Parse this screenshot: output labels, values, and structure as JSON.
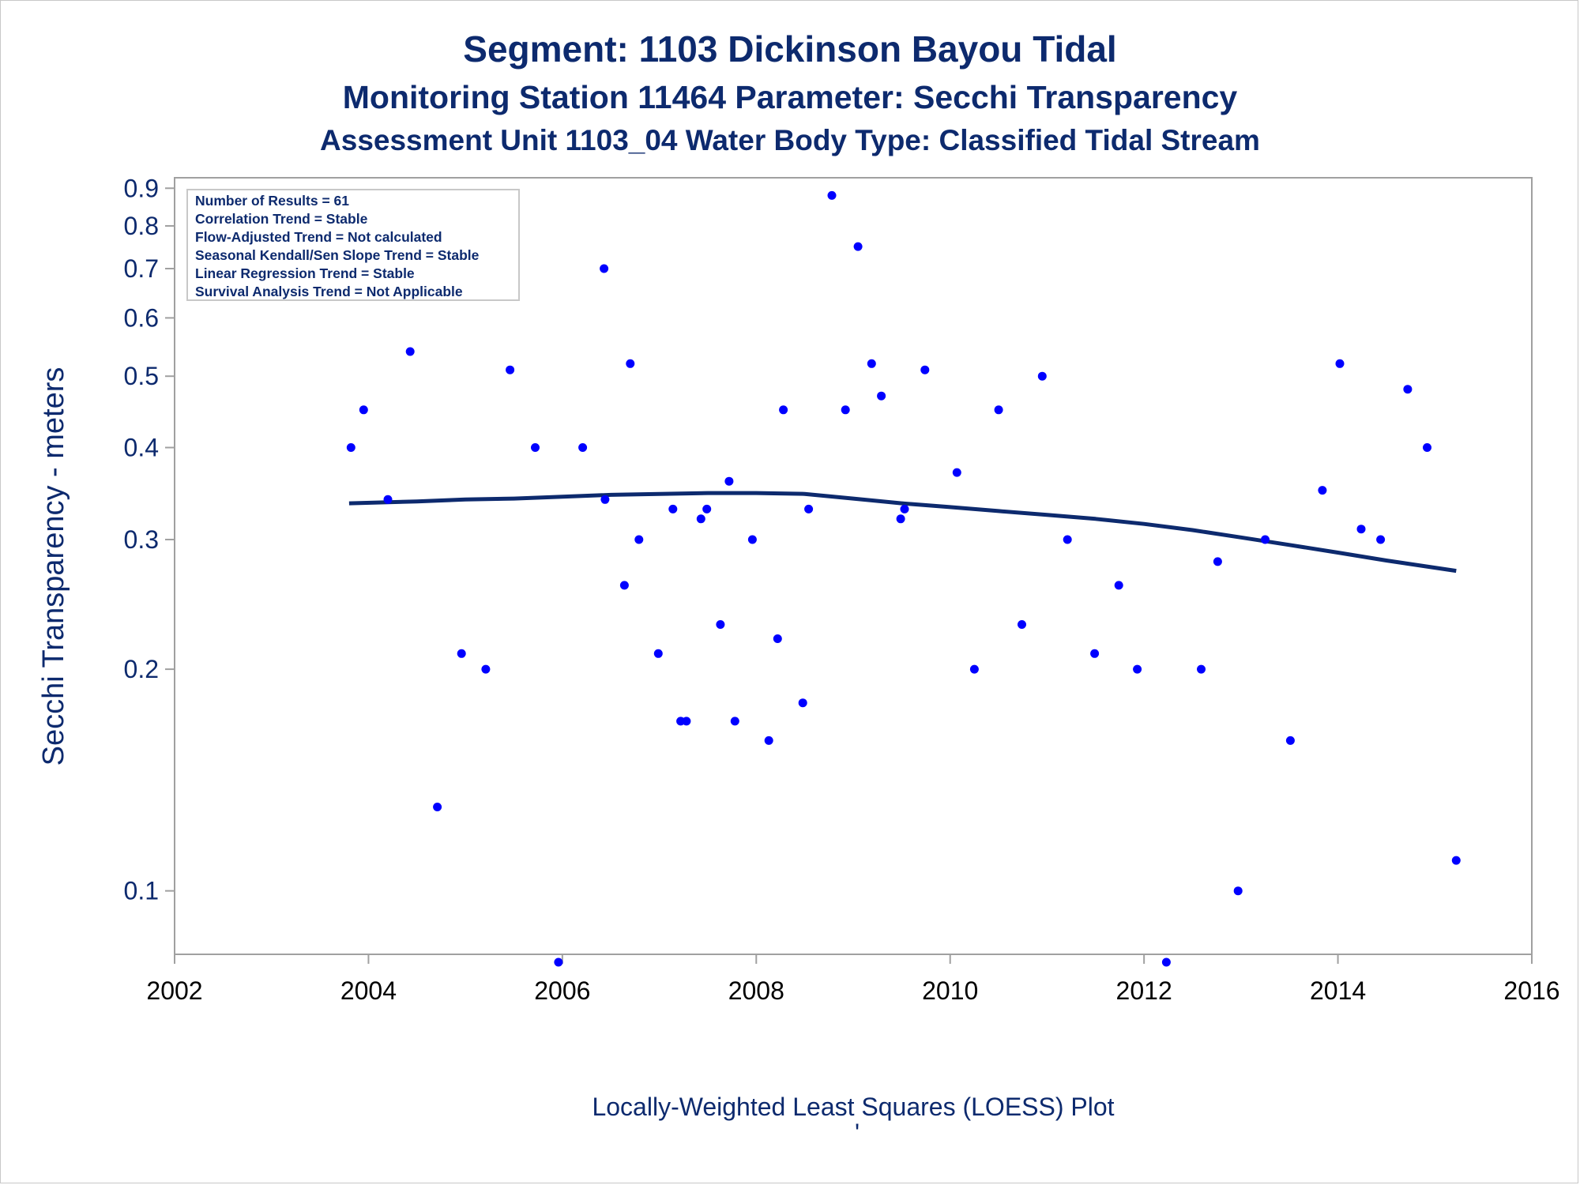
{
  "titles": {
    "line1": "Segment: 1103  Dickinson Bayou Tidal",
    "line2": "Monitoring Station 11464 Parameter: Secchi Transparency",
    "line3": "Assessment Unit 1103_04   Water Body Type: Classified Tidal Stream"
  },
  "stats_box": [
    "Number of Results = 61",
    "Correlation Trend = Stable",
    "Flow-Adjusted Trend = Not calculated",
    "Seasonal Kendall/Sen Slope Trend = Stable",
    "Linear Regression Trend = Stable",
    "Survival Analysis Trend = Not Applicable"
  ],
  "footnote": "Locally-Weighted Least Squares (LOESS) Plot",
  "footnote_mark": "'",
  "colors": {
    "title": "#0d2a6e",
    "points": "#0000ff",
    "loess": "#0d2a6e",
    "x_ticks": "#000000",
    "y_ticks": "#0d2a6e",
    "frame": "#a0a0a0"
  },
  "chart_data": {
    "type": "scatter",
    "ylabel": "Secchi Transparency - meters",
    "xlabel": "",
    "y_scale": "log",
    "xlim": [
      2002,
      2016
    ],
    "ylim": [
      0.082,
      0.93
    ],
    "x_ticks": [
      2002,
      2004,
      2006,
      2008,
      2010,
      2012,
      2014,
      2016
    ],
    "y_ticks": [
      0.1,
      0.2,
      0.3,
      0.4,
      0.5,
      0.6,
      0.7,
      0.8,
      0.9
    ],
    "y_tick_labels": [
      "0.1",
      "0.2",
      "0.3",
      "0.4",
      "0.5",
      "0.6",
      "0.7",
      "0.8",
      "0.9"
    ],
    "grid": false,
    "legend": "none",
    "series": [
      {
        "kind": "points",
        "x": [
          2003.82,
          2003.95,
          2004.2,
          2004.43,
          2004.71,
          2004.96,
          2005.21,
          2005.46,
          2005.72,
          2005.96,
          2006.21,
          2006.43,
          2006.44,
          2006.64,
          2006.7,
          2006.79,
          2006.99,
          2007.14,
          2007.22,
          2007.28,
          2007.43,
          2007.49,
          2007.63,
          2007.72,
          2007.78,
          2007.96,
          2008.13,
          2008.22,
          2008.28,
          2008.48,
          2008.54,
          2008.78,
          2008.92,
          2009.05,
          2009.19,
          2009.29,
          2009.49,
          2009.53,
          2009.74,
          2010.07,
          2010.25,
          2010.5,
          2010.74,
          2010.95,
          2011.21,
          2011.49,
          2011.74,
          2011.93,
          2012.23,
          2012.59,
          2012.76,
          2012.97,
          2013.25,
          2013.51,
          2013.84,
          2014.02,
          2014.24,
          2014.44,
          2014.72,
          2014.92,
          2015.22
        ],
        "y": [
          0.4,
          0.45,
          0.34,
          0.54,
          0.13,
          0.21,
          0.2,
          0.51,
          0.4,
          0.08,
          0.4,
          0.7,
          0.34,
          0.26,
          0.52,
          0.3,
          0.21,
          0.33,
          0.17,
          0.17,
          0.32,
          0.33,
          0.23,
          0.36,
          0.17,
          0.3,
          0.16,
          0.22,
          0.45,
          0.18,
          0.33,
          0.88,
          0.45,
          0.75,
          0.52,
          0.47,
          0.32,
          0.33,
          0.51,
          0.37,
          0.2,
          0.45,
          0.23,
          0.5,
          0.3,
          0.21,
          0.26,
          0.2,
          0.08,
          0.2,
          0.28,
          0.1,
          0.3,
          0.16,
          0.35,
          0.52,
          0.31,
          0.3,
          0.48,
          0.4,
          0.11
        ]
      },
      {
        "kind": "loess",
        "x": [
          2003.8,
          2004.5,
          2005.0,
          2005.5,
          2006.0,
          2006.5,
          2007.0,
          2007.5,
          2008.0,
          2008.5,
          2009.0,
          2009.5,
          2010.0,
          2010.5,
          2011.0,
          2011.5,
          2012.0,
          2012.5,
          2013.0,
          2013.5,
          2014.0,
          2014.5,
          2015.22
        ],
        "y": [
          0.336,
          0.338,
          0.34,
          0.341,
          0.343,
          0.345,
          0.346,
          0.347,
          0.347,
          0.346,
          0.341,
          0.336,
          0.332,
          0.328,
          0.324,
          0.32,
          0.315,
          0.309,
          0.302,
          0.295,
          0.288,
          0.281,
          0.272
        ]
      }
    ]
  }
}
